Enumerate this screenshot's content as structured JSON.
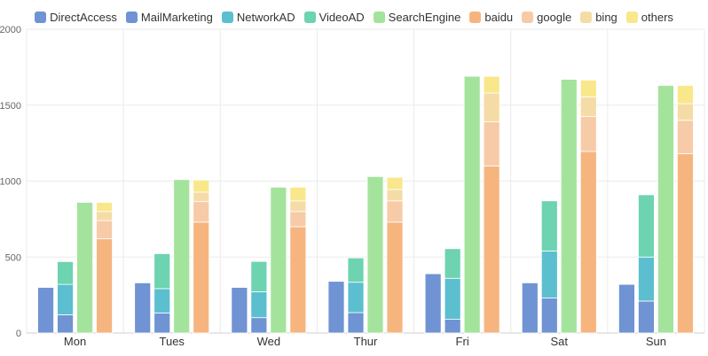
{
  "chart_data": {
    "type": "bar",
    "categories": [
      "Mon",
      "Tues",
      "Wed",
      "Thur",
      "Fri",
      "Sat",
      "Sun"
    ],
    "yticks": [
      "0",
      "500",
      "1000",
      "1500",
      "2000"
    ],
    "ylim": [
      0,
      2000
    ],
    "legend_position": "top-center",
    "grid": true,
    "series": [
      {
        "name": "DirectAccess",
        "color": "#6f93d3",
        "stack": "direct",
        "values": [
          300,
          330,
          300,
          340,
          390,
          330,
          320
        ]
      },
      {
        "name": "MailMarketing",
        "color": "#6f93d3",
        "stack": "ad",
        "values": [
          120,
          132,
          101,
          134,
          90,
          230,
          210
        ]
      },
      {
        "name": "NetworkAD",
        "color": "#5bbfcf",
        "stack": "ad",
        "values": [
          200,
          160,
          170,
          200,
          270,
          310,
          290
        ]
      },
      {
        "name": "VideoAD",
        "color": "#6dd3b0",
        "stack": "ad",
        "values": [
          150,
          230,
          200,
          160,
          195,
          330,
          410
        ]
      },
      {
        "name": "SearchEngine",
        "color": "#a4e39c",
        "stack": "search",
        "values": [
          860,
          1010,
          960,
          1030,
          1690,
          1670,
          1630
        ]
      },
      {
        "name": "baidu",
        "color": "#f6b57f",
        "stack": "engines",
        "values": [
          620,
          730,
          700,
          730,
          1100,
          1195,
          1180
        ]
      },
      {
        "name": "google",
        "color": "#f7cba7",
        "stack": "engines",
        "values": [
          120,
          135,
          100,
          140,
          290,
          230,
          220
        ]
      },
      {
        "name": "bing",
        "color": "#f5dca6",
        "stack": "engines",
        "values": [
          60,
          62,
          70,
          75,
          190,
          130,
          110
        ]
      },
      {
        "name": "others",
        "color": "#f8e88b",
        "stack": "engines",
        "values": [
          60,
          80,
          90,
          80,
          110,
          110,
          120
        ]
      }
    ]
  }
}
